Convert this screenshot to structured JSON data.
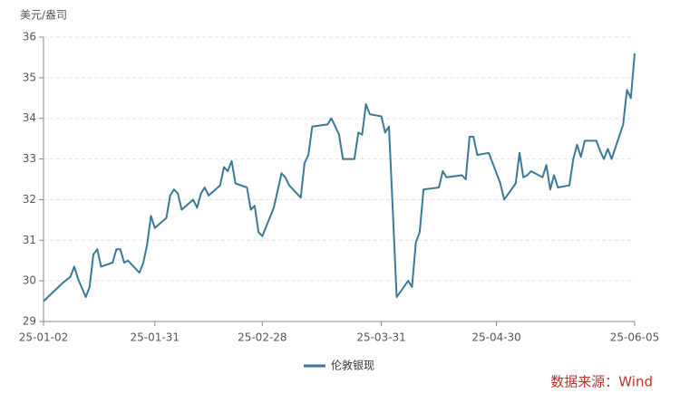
{
  "chart_data": {
    "type": "line",
    "y_label": "美元/盎司",
    "source": "数据来源：Wind",
    "legend_position": "bottom",
    "grid": true,
    "xlim": [
      "25-01-02",
      "25-06-05"
    ],
    "xticks": [
      "25-01-02",
      "25-01-31",
      "25-02-28",
      "25-03-31",
      "25-04-30",
      "25-06-05"
    ],
    "ylim": [
      29,
      36
    ],
    "yticks": [
      29,
      30,
      31,
      32,
      33,
      34,
      35,
      36
    ],
    "x": [
      "25-01-02",
      "25-01-07",
      "25-01-09",
      "25-01-10",
      "25-01-11",
      "25-01-13",
      "25-01-14",
      "25-01-15",
      "25-01-16",
      "25-01-17",
      "25-01-20",
      "25-01-21",
      "25-01-22",
      "25-01-23",
      "25-01-24",
      "25-01-27",
      "25-01-28",
      "25-01-29",
      "25-01-30",
      "25-01-31",
      "25-02-03",
      "25-02-04",
      "25-02-05",
      "25-02-06",
      "25-02-07",
      "25-02-10",
      "25-02-11",
      "25-02-12",
      "25-02-13",
      "25-02-14",
      "25-02-17",
      "25-02-18",
      "25-02-19",
      "25-02-20",
      "25-02-21",
      "25-02-24",
      "25-02-25",
      "25-02-26",
      "25-02-27",
      "25-02-28",
      "25-03-03",
      "25-03-05",
      "25-03-06",
      "25-03-07",
      "25-03-10",
      "25-03-11",
      "25-03-12",
      "25-03-13",
      "25-03-17",
      "25-03-18",
      "25-03-19",
      "25-03-20",
      "25-03-21",
      "25-03-24",
      "25-03-25",
      "25-03-26",
      "25-03-27",
      "25-03-28",
      "25-03-31",
      "25-04-01",
      "25-04-02",
      "25-04-03",
      "25-04-04",
      "25-04-07",
      "25-04-08",
      "25-04-09",
      "25-04-10",
      "25-04-11",
      "25-04-15",
      "25-04-16",
      "25-04-17",
      "25-04-21",
      "25-04-22",
      "25-04-23",
      "25-04-24",
      "25-04-25",
      "25-04-28",
      "25-04-30",
      "25-05-01",
      "25-05-02",
      "25-05-05",
      "25-05-06",
      "25-05-07",
      "25-05-08",
      "25-05-09",
      "25-05-12",
      "25-05-13",
      "25-05-14",
      "25-05-15",
      "25-05-16",
      "25-05-19",
      "25-05-20",
      "25-05-21",
      "25-05-22",
      "25-05-23",
      "25-05-26",
      "25-05-27",
      "25-05-28",
      "25-05-29",
      "25-05-30",
      "25-06-02",
      "25-06-03",
      "25-06-04",
      "25-06-05"
    ],
    "series": [
      {
        "name": "伦敦银现",
        "color": "#3a7a94",
        "values": [
          29.5,
          29.95,
          30.1,
          30.35,
          30.05,
          29.6,
          29.85,
          30.65,
          30.78,
          30.35,
          30.45,
          30.78,
          30.78,
          30.45,
          30.5,
          30.2,
          30.45,
          30.9,
          31.6,
          31.3,
          31.55,
          32.1,
          32.25,
          32.15,
          31.75,
          32.0,
          31.8,
          32.15,
          32.3,
          32.1,
          32.35,
          32.8,
          32.7,
          32.95,
          32.4,
          32.3,
          31.75,
          31.85,
          31.2,
          31.1,
          31.8,
          32.65,
          32.55,
          32.35,
          32.05,
          32.9,
          33.1,
          33.8,
          33.85,
          34.0,
          33.8,
          33.6,
          33.0,
          33.0,
          33.65,
          33.6,
          34.35,
          34.1,
          34.05,
          33.65,
          33.8,
          31.7,
          29.6,
          30.0,
          29.85,
          30.95,
          31.2,
          32.25,
          32.3,
          32.7,
          32.55,
          32.6,
          32.5,
          33.55,
          33.55,
          33.1,
          33.15,
          32.65,
          32.4,
          32.0,
          32.4,
          33.15,
          32.55,
          32.6,
          32.7,
          32.55,
          32.85,
          32.25,
          32.6,
          32.3,
          32.35,
          33.0,
          33.35,
          33.05,
          33.45,
          33.45,
          33.2,
          33.0,
          33.25,
          33.0,
          33.85,
          34.7,
          34.5,
          35.6
        ]
      }
    ]
  }
}
